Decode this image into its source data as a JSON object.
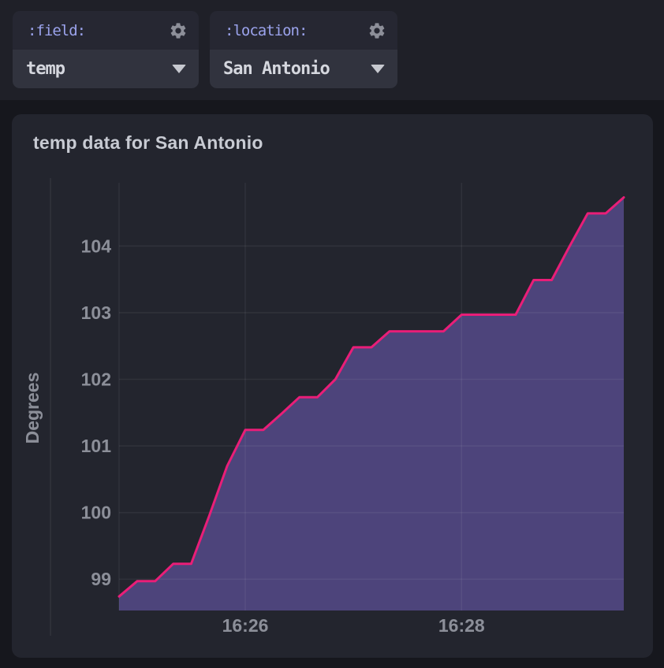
{
  "topbar": {
    "field_widget": {
      "label": ":field:",
      "value": "temp"
    },
    "location_widget": {
      "label": ":location:",
      "value": "San Antonio"
    }
  },
  "icons": {
    "gear": "⚙",
    "caret_down": "▼"
  },
  "panel": {
    "title": "temp data for San Antonio"
  },
  "colors": {
    "page_bg": "#16171d",
    "topbar_bg": "#1f2028",
    "widget_label_bg": "#262732",
    "widget_value_bg": "#31333e",
    "widget_label_text": "#9ba3ec",
    "widget_value_text": "#d5d7de",
    "icon_gray": "#8d8f99",
    "panel_bg": "#23252e",
    "panel_title_text": "#c8cbd3",
    "axis_text": "#8c8f99",
    "line": "#e91e78",
    "fill": "#4d447b",
    "grid": "rgba(255,255,255,0.06)"
  },
  "chart_data": {
    "type": "area",
    "title": "temp data for San Antonio",
    "xlabel": "",
    "ylabel": "Degrees",
    "x": [
      "16:24:50",
      "16:25:00",
      "16:25:10",
      "16:25:20",
      "16:25:30",
      "16:25:40",
      "16:25:50",
      "16:26:00",
      "16:26:10",
      "16:26:20",
      "16:26:30",
      "16:26:40",
      "16:26:50",
      "16:27:00",
      "16:27:10",
      "16:27:20",
      "16:27:30",
      "16:27:40",
      "16:27:50",
      "16:28:00",
      "16:28:10",
      "16:28:20",
      "16:28:30",
      "16:28:40",
      "16:28:50",
      "16:29:00",
      "16:29:10",
      "16:29:20",
      "16:29:30"
    ],
    "values": [
      98.74,
      98.97,
      98.97,
      99.23,
      99.23,
      99.95,
      100.7,
      101.24,
      101.24,
      101.48,
      101.73,
      101.73,
      102.0,
      102.48,
      102.48,
      102.72,
      102.72,
      102.72,
      102.72,
      102.97,
      102.97,
      102.97,
      102.97,
      103.49,
      103.49,
      104.0,
      104.49,
      104.49,
      104.73
    ],
    "ylim": [
      98.53,
      104.95
    ],
    "yticks": [
      99,
      100,
      101,
      102,
      103,
      104
    ],
    "xticks": [
      {
        "label": "16:26",
        "time": "16:26:00"
      },
      {
        "label": "16:28",
        "time": "16:28:00"
      }
    ],
    "grid": true,
    "legend": false,
    "line_color": "#e91e78",
    "fill_color": "#4d447b"
  }
}
